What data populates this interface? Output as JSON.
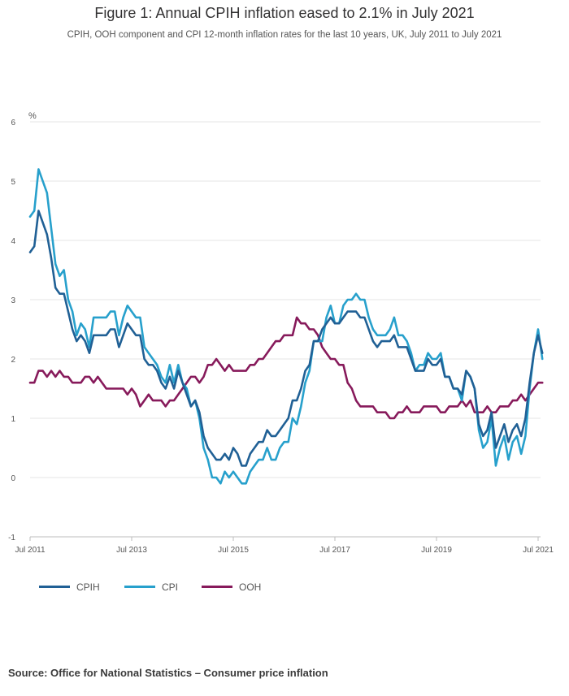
{
  "chart_data": {
    "type": "line",
    "title": "Figure 1: Annual CPIH inflation eased to 2.1% in July 2021",
    "subtitle": "CPIH, OOH component and CPI 12-month inflation rates for the last 10 years, UK, July 2011 to July 2021",
    "ylabel": "%",
    "ylim": [
      -1,
      6
    ],
    "yticks": [
      "-1",
      "0",
      "1",
      "2",
      "3",
      "4",
      "5",
      "6"
    ],
    "ytick_values": [
      -1,
      0,
      1,
      2,
      3,
      4,
      5,
      6
    ],
    "xticks": [
      "Jul 2011",
      "Jul 2013",
      "Jul 2015",
      "Jul 2017",
      "Jul 2019",
      "Jul 2021"
    ],
    "xtick_index": [
      0,
      24,
      48,
      72,
      96,
      120
    ],
    "n_points": 121,
    "grid": "horizontal",
    "series": [
      {
        "name": "CPIH",
        "color": "#206095",
        "values": [
          3.8,
          3.9,
          4.5,
          4.3,
          4.1,
          3.7,
          3.2,
          3.1,
          3.1,
          2.8,
          2.5,
          2.3,
          2.4,
          2.3,
          2.1,
          2.4,
          2.4,
          2.4,
          2.4,
          2.5,
          2.5,
          2.2,
          2.4,
          2.6,
          2.5,
          2.4,
          2.4,
          2.0,
          1.9,
          1.9,
          1.8,
          1.6,
          1.5,
          1.7,
          1.5,
          1.8,
          1.6,
          1.4,
          1.2,
          1.3,
          1.1,
          0.7,
          0.5,
          0.4,
          0.3,
          0.3,
          0.4,
          0.3,
          0.5,
          0.4,
          0.2,
          0.2,
          0.4,
          0.5,
          0.6,
          0.6,
          0.8,
          0.7,
          0.7,
          0.8,
          0.9,
          1.0,
          1.3,
          1.3,
          1.5,
          1.8,
          1.9,
          2.3,
          2.3,
          2.5,
          2.6,
          2.7,
          2.6,
          2.6,
          2.7,
          2.8,
          2.8,
          2.8,
          2.7,
          2.7,
          2.5,
          2.3,
          2.2,
          2.3,
          2.3,
          2.3,
          2.4,
          2.2,
          2.2,
          2.2,
          2.0,
          1.8,
          1.8,
          1.8,
          2.0,
          1.9,
          1.9,
          2.0,
          1.7,
          1.7,
          1.5,
          1.5,
          1.4,
          1.8,
          1.7,
          1.5,
          0.9,
          0.7,
          0.8,
          1.1,
          0.5,
          0.7,
          0.9,
          0.6,
          0.8,
          0.9,
          0.7,
          1.0,
          1.6,
          2.1,
          2.4,
          2.1
        ]
      },
      {
        "name": "CPI",
        "color": "#27a0cc",
        "values": [
          4.4,
          4.5,
          5.2,
          5.0,
          4.8,
          4.2,
          3.6,
          3.4,
          3.5,
          3.0,
          2.8,
          2.4,
          2.6,
          2.5,
          2.2,
          2.7,
          2.7,
          2.7,
          2.7,
          2.8,
          2.8,
          2.4,
          2.7,
          2.9,
          2.8,
          2.7,
          2.7,
          2.2,
          2.1,
          2.0,
          1.9,
          1.7,
          1.6,
          1.9,
          1.6,
          1.9,
          1.6,
          1.5,
          1.2,
          1.3,
          1.0,
          0.5,
          0.3,
          0.0,
          0.0,
          -0.1,
          0.1,
          0.0,
          0.1,
          0.0,
          -0.1,
          -0.1,
          0.1,
          0.2,
          0.3,
          0.3,
          0.5,
          0.3,
          0.3,
          0.5,
          0.6,
          0.6,
          1.0,
          0.9,
          1.2,
          1.6,
          1.8,
          2.3,
          2.3,
          2.3,
          2.7,
          2.9,
          2.6,
          2.6,
          2.9,
          3.0,
          3.0,
          3.1,
          3.0,
          3.0,
          2.7,
          2.5,
          2.4,
          2.4,
          2.4,
          2.5,
          2.7,
          2.4,
          2.4,
          2.3,
          2.1,
          1.8,
          1.9,
          1.9,
          2.1,
          2.0,
          2.0,
          2.1,
          1.7,
          1.7,
          1.5,
          1.5,
          1.3,
          1.8,
          1.7,
          1.5,
          0.8,
          0.5,
          0.6,
          1.0,
          0.2,
          0.5,
          0.7,
          0.3,
          0.6,
          0.7,
          0.4,
          0.7,
          1.5,
          2.1,
          2.5,
          2.0
        ]
      },
      {
        "name": "OOH",
        "color": "#871a5b",
        "values": [
          1.6,
          1.6,
          1.8,
          1.8,
          1.7,
          1.8,
          1.7,
          1.8,
          1.7,
          1.7,
          1.6,
          1.6,
          1.6,
          1.7,
          1.7,
          1.6,
          1.7,
          1.6,
          1.5,
          1.5,
          1.5,
          1.5,
          1.5,
          1.4,
          1.5,
          1.4,
          1.2,
          1.3,
          1.4,
          1.3,
          1.3,
          1.3,
          1.2,
          1.3,
          1.3,
          1.4,
          1.5,
          1.6,
          1.7,
          1.7,
          1.6,
          1.7,
          1.9,
          1.9,
          2.0,
          1.9,
          1.8,
          1.9,
          1.8,
          1.8,
          1.8,
          1.8,
          1.9,
          1.9,
          2.0,
          2.0,
          2.1,
          2.2,
          2.3,
          2.3,
          2.4,
          2.4,
          2.4,
          2.7,
          2.6,
          2.6,
          2.5,
          2.5,
          2.4,
          2.2,
          2.1,
          2.0,
          2.0,
          1.9,
          1.9,
          1.6,
          1.5,
          1.3,
          1.2,
          1.2,
          1.2,
          1.2,
          1.1,
          1.1,
          1.1,
          1.0,
          1.0,
          1.1,
          1.1,
          1.2,
          1.1,
          1.1,
          1.1,
          1.2,
          1.2,
          1.2,
          1.2,
          1.1,
          1.1,
          1.2,
          1.2,
          1.2,
          1.3,
          1.2,
          1.3,
          1.1,
          1.1,
          1.1,
          1.2,
          1.1,
          1.1,
          1.2,
          1.2,
          1.2,
          1.3,
          1.3,
          1.4,
          1.3,
          1.4,
          1.5,
          1.6,
          1.6
        ]
      }
    ]
  },
  "legend": {
    "items": [
      {
        "label": "CPIH",
        "color": "#206095"
      },
      {
        "label": "CPI",
        "color": "#27a0cc"
      },
      {
        "label": "OOH",
        "color": "#871a5b"
      }
    ]
  },
  "source": "Source: Office for National Statistics – Consumer price inflation"
}
